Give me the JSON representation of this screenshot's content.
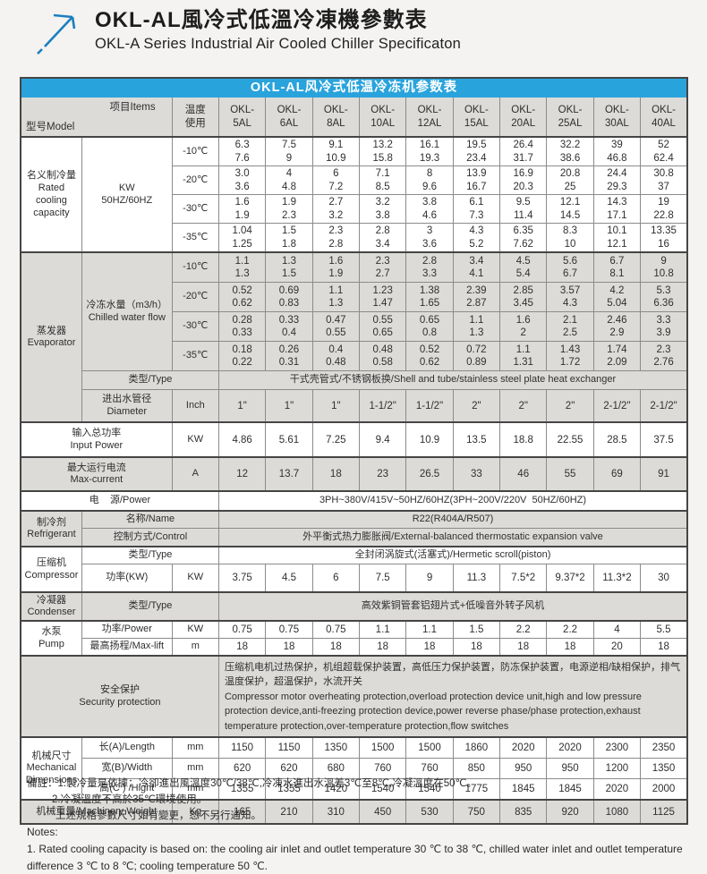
{
  "page": {
    "title_zh": "OKL-AL風冷式低溫冷凍機參數表",
    "title_en": "OKL-A Series Industrial Air Cooled Chiller Specificaton"
  },
  "colors": {
    "accent_blue": "#29a3dc",
    "arrow_blue": "#1b7fc0",
    "row_gray": "#dcdbd8"
  },
  "table": {
    "title": "OKL-AL风冷式低温冷冻机参数表",
    "corner": {
      "model": "型号Model",
      "items": "项目Items"
    },
    "temp_header": "温度\n使用",
    "models": [
      "OKL-\n5AL",
      "OKL-\n6AL",
      "OKL-\n8AL",
      "OKL-\n10AL",
      "OKL-\n12AL",
      "OKL-\n15AL",
      "OKL-\n20AL",
      "OKL-\n25AL",
      "OKL-\n30AL",
      "OKL-\n40AL"
    ],
    "rated": {
      "label": "名义制冷量\nRated\ncooling\ncapacity",
      "unit": "KW\n50HZ/60HZ",
      "rows": [
        {
          "temp": "-10℃",
          "values": [
            "6.3\n7.6",
            "7.5\n9",
            "9.1\n10.9",
            "13.2\n15.8",
            "16.1\n19.3",
            "19.5\n23.4",
            "26.4\n31.7",
            "32.2\n38.6",
            "39\n46.8",
            "52\n62.4"
          ]
        },
        {
          "temp": "-20℃",
          "values": [
            "3.0\n3.6",
            "4\n4.8",
            "6\n7.2",
            "7.1\n8.5",
            "8\n9.6",
            "13.9\n16.7",
            "16.9\n20.3",
            "20.8\n25",
            "24.4\n29.3",
            "30.8\n37"
          ]
        },
        {
          "temp": "-30℃",
          "values": [
            "1.6\n1.9",
            "1.9\n2.3",
            "2.7\n3.2",
            "3.2\n3.8",
            "3.8\n4.6",
            "6.1\n7.3",
            "9.5\n11.4",
            "12.1\n14.5",
            "14.3\n17.1",
            "19\n22.8"
          ]
        },
        {
          "temp": "-35℃",
          "values": [
            "1.04\n1.25",
            "1.5\n1.8",
            "2.3\n2.8",
            "2.8\n3.4",
            "3\n3.6",
            "4.3\n5.2",
            "6.35\n7.62",
            "8.3\n10",
            "10.1\n12.1",
            "13.35\n16"
          ]
        }
      ]
    },
    "evaporator": {
      "label": "蒸发器\nEvaporator",
      "flow_label": "冷冻水量（m3/h）\nChilled water flow",
      "rows": [
        {
          "temp": "-10℃",
          "values": [
            "1.1\n1.3",
            "1.3\n1.5",
            "1.6\n1.9",
            "2.3\n2.7",
            "2.8\n3.3",
            "3.4\n4.1",
            "4.5\n5.4",
            "5.6\n6.7",
            "6.7\n8.1",
            "9\n10.8"
          ]
        },
        {
          "temp": "-20℃",
          "values": [
            "0.52\n0.62",
            "0.69\n0.83",
            "1.1\n1.3",
            "1.23\n1.47",
            "1.38\n1.65",
            "2.39\n2.87",
            "2.85\n3.45",
            "3.57\n4.3",
            "4.2\n5.04",
            "5.3\n6.36"
          ]
        },
        {
          "temp": "-30℃",
          "values": [
            "0.28\n0.33",
            "0.33\n0.4",
            "0.47\n0.55",
            "0.55\n0.65",
            "0.65\n0.8",
            "1.1\n1.3",
            "1.6\n2",
            "2.1\n2.5",
            "2.46\n2.9",
            "3.3\n3.9"
          ]
        },
        {
          "temp": "-35℃",
          "values": [
            "0.18\n0.22",
            "0.26\n0.31",
            "0.4\n0.48",
            "0.48\n0.58",
            "0.52\n0.62",
            "0.72\n0.89",
            "1.1\n1.31",
            "1.43\n1.72",
            "1.74\n2.09",
            "2.3\n2.76"
          ]
        }
      ],
      "type_label": "类型/Type",
      "type_value": "干式壳管式/不锈钢板换/Shell and tube/stainless steel plate heat exchanger",
      "diameter_label": "进出水管径\nDiameter",
      "diameter_unit": "Inch",
      "diameter_values": [
        "1\"",
        "1\"",
        "1\"",
        "1-1/2\"",
        "1-1/2\"",
        "2\"",
        "2\"",
        "2\"",
        "2-1/2\"",
        "2-1/2\""
      ]
    },
    "input_power": {
      "label": "输入总功率\nInput Power",
      "unit": "KW",
      "values": [
        "4.86",
        "5.61",
        "7.25",
        "9.4",
        "10.9",
        "13.5",
        "18.8",
        "22.55",
        "28.5",
        "37.5"
      ]
    },
    "max_current": {
      "label": "最大运行电流\nMax-current",
      "unit": "A",
      "values": [
        "12",
        "13.7",
        "18",
        "23",
        "26.5",
        "33",
        "46",
        "55",
        "69",
        "91"
      ]
    },
    "power": {
      "label": "电    源/Power",
      "value": "3PH~380V/415V~50HZ/60HZ(3PH~200V/220V  50HZ/60HZ)"
    },
    "refrigerant": {
      "label": "制冷剂\nRefrigerant",
      "name_label": "名称/Name",
      "name_value": "R22(R404A/R507)",
      "control_label": "控制方式/Control",
      "control_value": "外平衡式热力膨胀阀/External-balanced thermostatic expansion valve"
    },
    "compressor": {
      "label": "压缩机\nCompressor",
      "type_label": "类型/Type",
      "type_value": "全封闭涡旋式(活塞式)/Hermetic scroll(piston)",
      "power_label": "功率(KW)",
      "power_unit": "KW",
      "power_values": [
        "3.75",
        "4.5",
        "6",
        "7.5",
        "9",
        "11.3",
        "7.5*2",
        "9.37*2",
        "11.3*2",
        "30"
      ]
    },
    "condenser": {
      "label": "冷凝器\nCondenser",
      "type_label": "类型/Type",
      "type_value": "高效紫铜管套铝翅片式+低噪音外转子风机"
    },
    "pump": {
      "label": "水泵\nPump",
      "power_label": "功率/Power",
      "power_unit": "KW",
      "power_values": [
        "0.75",
        "0.75",
        "0.75",
        "1.1",
        "1.1",
        "1.5",
        "2.2",
        "2.2",
        "4",
        "5.5"
      ],
      "lift_label": "最高扬程/Max-lift",
      "lift_unit": "m",
      "lift_values": [
        "18",
        "18",
        "18",
        "18",
        "18",
        "18",
        "18",
        "18",
        "20",
        "18"
      ]
    },
    "security": {
      "label": "安全保护\nSecurity protection",
      "text": "压缩机电机过热保护，机组超载保护装置，高低压力保护装置，防冻保护装置，电源逆相/缺相保护，排气温度保护，超温保护，水流开关\n Compressor motor overheating protection,overload protection device unit,high and low pressure protection device,anti-freezing protection device,power reverse phase/phase protection,exhaust temperature protection,over-temperature protection,flow switches"
    },
    "dimensions": {
      "label": "机械尺寸\nMechanical\nDimensions",
      "rows": [
        {
          "label": "长(A)/Length",
          "unit": "mm",
          "values": [
            "1150",
            "1150",
            "1350",
            "1500",
            "1500",
            "1860",
            "2020",
            "2020",
            "2300",
            "2350"
          ]
        },
        {
          "label": "宽(B)/Width",
          "unit": "mm",
          "values": [
            "620",
            "620",
            "680",
            "760",
            "760",
            "850",
            "950",
            "950",
            "1200",
            "1350"
          ]
        },
        {
          "label": "高(C ) /Hight",
          "unit": "mm",
          "values": [
            "1355",
            "1355",
            "1420",
            "1540",
            "1540",
            "1775",
            "1845",
            "1845",
            "2020",
            "2000"
          ]
        }
      ]
    },
    "weight": {
      "label": "机械重量/Machinery Weight",
      "unit": "Kg",
      "values": [
        "165",
        "210",
        "310",
        "450",
        "530",
        "750",
        "835",
        "920",
        "1080",
        "1125"
      ]
    }
  },
  "notes": {
    "zh1": "備註：1.製冷量是依據：冷卻進出風溫度30℃/38℃,冷凍水進出水溫差3℃至8℃,冷凝溫度在50℃。",
    "zh2": "2.冷凝溫度不高於35℃環境使用。",
    "zh3": "上述規格參數尺寸如有變更，恕不另行通知。",
    "en_title": "Notes:",
    "en1": "1. Rated cooling capacity is based on: the cooling air inlet and outlet temperature 30 ℃ to 38 ℃, chilled water inlet and outlet temperature difference 3 ℃ to 8 ℃; cooling temperature 50 ℃."
  }
}
